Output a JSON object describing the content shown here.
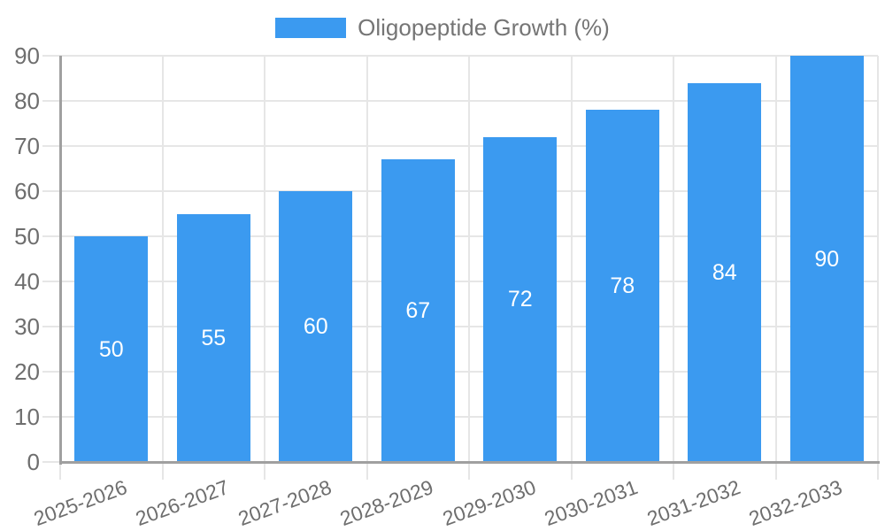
{
  "page": {
    "background": "#FFFFFF"
  },
  "legend": {
    "label": "Oligopeptide Growth (%)"
  },
  "colors": {
    "bar": "#3B9AF0",
    "grid": "#E6E6E6",
    "axis": "#A0A0A0",
    "tick_label": "#6E6E6E",
    "legend_label": "#757575",
    "value_label": "#FFFFFF"
  },
  "chart_data": {
    "type": "bar",
    "title": "Oligopeptide Growth (%)",
    "categories": [
      "2025-2026",
      "2026-2027",
      "2027-2028",
      "2028-2029",
      "2029-2030",
      "2030-2031",
      "2031-2032",
      "2032-2033"
    ],
    "series": [
      {
        "name": "Oligopeptide Growth (%)",
        "values": [
          50,
          55,
          60,
          67,
          72,
          78,
          84,
          90
        ]
      }
    ],
    "xlabel": "",
    "ylabel": "",
    "ylim": [
      0,
      90
    ],
    "ytick_step": 10,
    "yticks": [
      0,
      10,
      20,
      30,
      40,
      50,
      60,
      70,
      80,
      90
    ],
    "grid": true,
    "legend_position": "top",
    "value_label_position": "inside-center",
    "x_tick_rotation_deg": -20
  }
}
